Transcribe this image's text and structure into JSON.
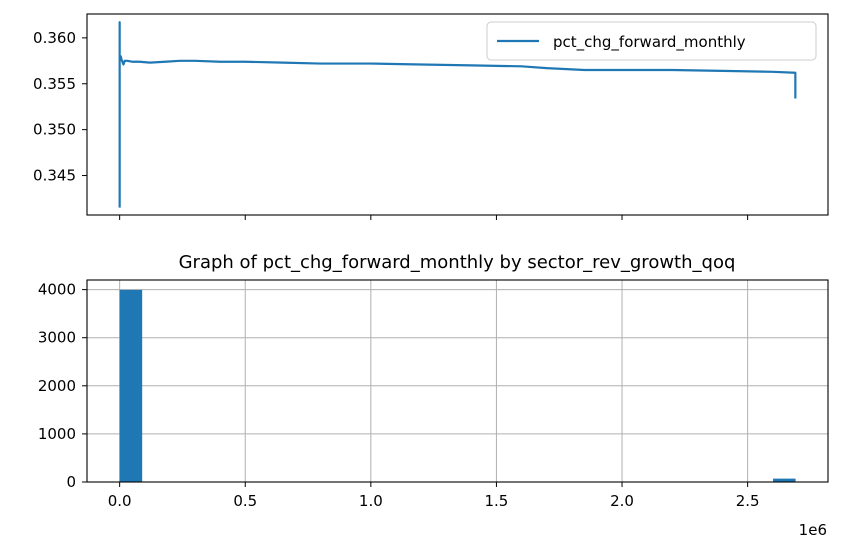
{
  "chart_data": [
    {
      "type": "line",
      "title": "",
      "xlabel": "",
      "ylabel": "",
      "xlim": [
        -130000,
        2820000
      ],
      "ylim": [
        0.3407,
        0.3626
      ],
      "xticks": [
        0,
        500000,
        1000000,
        1500000,
        2000000,
        2500000
      ],
      "yticks": [
        0.345,
        0.35,
        0.355,
        0.36
      ],
      "ytick_labels": [
        "0.345",
        "0.350",
        "0.355",
        "0.360"
      ],
      "grid": false,
      "legend_position": "top-right",
      "color": "#1f77b4",
      "series": [
        {
          "name": "pct_chg_forward_monthly",
          "x": [
            0,
            0,
            0,
            0,
            0,
            0,
            4000,
            8000,
            15000,
            20000,
            30000,
            50000,
            80000,
            120000,
            180000,
            240000,
            300000,
            400000,
            500000,
            650000,
            800000,
            1000000,
            1200000,
            1400000,
            1600000,
            1700000,
            1850000,
            2000000,
            2200000,
            2400000,
            2600000,
            2690000,
            2690000
          ],
          "y": [
            0.3415,
            0.3617,
            0.347,
            0.358,
            0.3568,
            0.3578,
            0.358,
            0.3576,
            0.3571,
            0.3575,
            0.3575,
            0.3574,
            0.3574,
            0.3573,
            0.3574,
            0.3575,
            0.3575,
            0.3574,
            0.3574,
            0.3573,
            0.3572,
            0.3572,
            0.3571,
            0.357,
            0.3569,
            0.3567,
            0.3565,
            0.3565,
            0.3565,
            0.3564,
            0.3563,
            0.3562,
            0.3534
          ]
        }
      ]
    },
    {
      "type": "bar",
      "title": "Graph of pct_chg_forward_monthly by sector_rev_growth_qoq",
      "xlabel": "",
      "ylabel": "",
      "xlim": [
        -130000,
        2820000
      ],
      "ylim": [
        0,
        4200
      ],
      "xticks": [
        0,
        0.5,
        1.0,
        1.5,
        2.0,
        2.5
      ],
      "xtick_labels": [
        "0.0",
        "0.5",
        "1.0",
        "1.5",
        "2.0",
        "2.5"
      ],
      "x_offset_label": "1e6",
      "yticks": [
        0,
        1000,
        2000,
        3000,
        4000
      ],
      "ytick_labels": [
        "0",
        "1000",
        "2000",
        "3000",
        "4000"
      ],
      "grid": true,
      "color": "#1f77b4",
      "bin_edges": [
        0,
        89700,
        179400,
        269100,
        358800,
        448500,
        538200,
        627900,
        717600,
        807300,
        897000,
        986700,
        1076400,
        1166100,
        1255800,
        1345500,
        1435200,
        1524900,
        1614600,
        1704300,
        1794000,
        1883700,
        1973400,
        2063100,
        2152800,
        2242500,
        2332200,
        2421900,
        2511600,
        2601300,
        2691000
      ],
      "counts": [
        3995,
        0,
        0,
        0,
        0,
        0,
        0,
        0,
        0,
        0,
        0,
        0,
        0,
        0,
        0,
        0,
        0,
        0,
        0,
        0,
        0,
        0,
        0,
        0,
        0,
        0,
        0,
        0,
        0,
        70
      ]
    }
  ]
}
